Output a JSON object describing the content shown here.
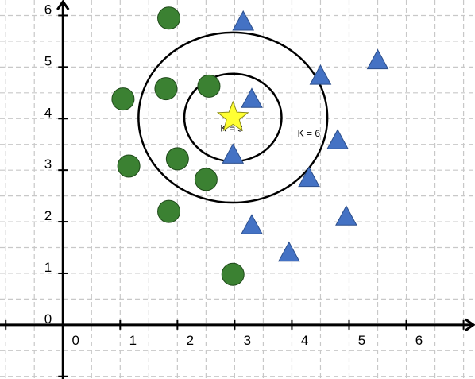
{
  "chart_data": {
    "type": "scatter",
    "xlim": [
      -1.1,
      7.2
    ],
    "ylim": [
      -1.05,
      6.3
    ],
    "grid": true,
    "x_ticks": [
      0,
      1,
      2,
      3,
      4,
      5,
      6
    ],
    "y_ticks": [
      0,
      1,
      2,
      3,
      4,
      5,
      6
    ],
    "x_tick_labels": [
      "0",
      "1",
      "2",
      "3",
      "4",
      "5",
      "6"
    ],
    "y_tick_labels": [
      "0",
      "1",
      "2",
      "3",
      "4",
      "5",
      "6"
    ],
    "series": [
      {
        "marker": "circle",
        "color": "#3b8132",
        "points": [
          [
            1.85,
            5.95
          ],
          [
            1.05,
            4.38
          ],
          [
            1.8,
            4.58
          ],
          [
            2.55,
            4.63
          ],
          [
            1.15,
            3.08
          ],
          [
            2.0,
            3.22
          ],
          [
            2.5,
            2.82
          ],
          [
            1.85,
            2.2
          ],
          [
            2.97,
            0.98
          ]
        ]
      },
      {
        "marker": "triangle",
        "color": "#4472c4",
        "points": [
          [
            3.15,
            5.9
          ],
          [
            5.5,
            5.15
          ],
          [
            4.5,
            4.85
          ],
          [
            3.3,
            4.4
          ],
          [
            2.97,
            3.32
          ],
          [
            4.8,
            3.6
          ],
          [
            4.3,
            2.87
          ],
          [
            4.95,
            2.12
          ],
          [
            3.3,
            1.95
          ],
          [
            3.95,
            1.42
          ]
        ]
      }
    ],
    "query_point": {
      "marker": "star",
      "color": "#ffff33",
      "x": 2.97,
      "y": 4.02
    },
    "circles": [
      {
        "label": "K = 3",
        "cx": 2.97,
        "cy": 4.02,
        "r": 0.85,
        "label_x": 2.75,
        "label_y": 3.75
      },
      {
        "label": "K = 6",
        "cx": 2.97,
        "cy": 4.02,
        "r": 1.65,
        "label_x": 4.1,
        "label_y": 3.65
      }
    ]
  }
}
